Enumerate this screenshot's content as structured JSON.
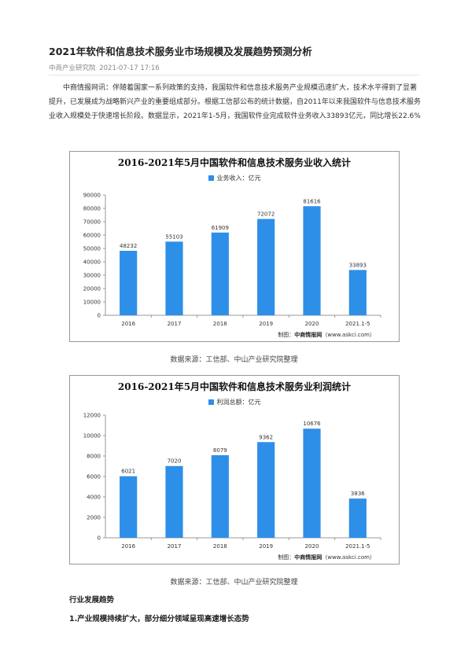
{
  "article": {
    "title": "2021年软件和信息技术服务业市场规模及发展趋势预测分析",
    "source": "中商产业研究院",
    "date": "2021-07-17 17:16",
    "intro": "中商情报网讯：伴随着国家一系列政策的支持，我国软件和信息技术服务产业规模迅速扩大，技术水平得到了显著提升，已发展成为战略新兴产业的重要组成部分。根据工信部公布的统计数据，自2011年以来我国软件与信息技术服务业收入规模处于快速增长阶段。数据显示，2021年1-5月，我国软件业完成软件业务收入33893亿元，同比增长22.6%"
  },
  "colors": {
    "bar": "#2e8fe8",
    "axis": "#999999",
    "grid": "#dcdcdc"
  },
  "chart_data": [
    {
      "type": "bar",
      "title": "2016-2021年5月中国软件和信息技术服务业收入统计",
      "categories": [
        "2016",
        "2017",
        "2018",
        "2019",
        "2020",
        "2021.1-5"
      ],
      "series": [
        {
          "name": "业务收入：亿元",
          "values": [
            48232,
            55103,
            61909,
            72072,
            81616,
            33893
          ]
        }
      ],
      "yticks": [
        "0",
        "10000",
        "20000",
        "30000",
        "40000",
        "50000",
        "60000",
        "70000",
        "80000",
        "90000"
      ],
      "ylim": [
        0,
        90000
      ],
      "grid": false,
      "legend": "top",
      "credit_prefix": "制图：",
      "credit_brand": "中商情报网",
      "credit_url": "（www.askci.com）"
    },
    {
      "type": "bar",
      "title": "2016-2021年5月中国软件和信息技术服务业利润统计",
      "categories": [
        "2016",
        "2017",
        "2018",
        "2019",
        "2020",
        "2021.1-5"
      ],
      "series": [
        {
          "name": "利润总额：亿元",
          "values": [
            6021,
            7020,
            8079,
            9362,
            10676,
            3836
          ]
        }
      ],
      "yticks": [
        "0",
        "2000",
        "4000",
        "6000",
        "8000",
        "10000",
        "12000"
      ],
      "ylim": [
        0,
        12000
      ],
      "grid": false,
      "legend": "top",
      "credit_prefix": "制图：",
      "credit_brand": "中商情报网",
      "credit_url": "（www.askci.com）"
    }
  ],
  "captions": [
    "数据来源：工信部、中山产业研究院整理",
    "数据来源：工信部、中山产业研究院整理"
  ],
  "sections": {
    "trend_heading": "行业发展趋势",
    "trend_item_1": "1.产业规模持续扩大，部分细分领域呈现高速增长态势"
  }
}
